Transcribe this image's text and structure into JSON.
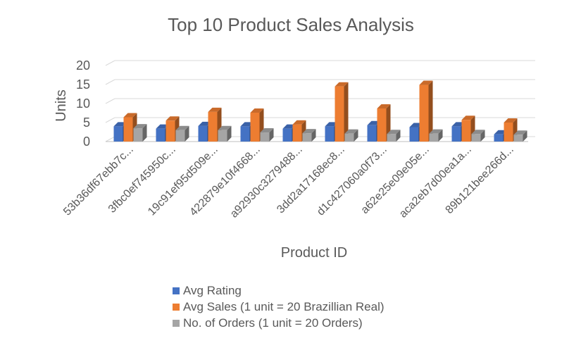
{
  "chart_data": {
    "type": "bar",
    "title": "Top 10 Product Sales Analysis",
    "xlabel": "Product ID",
    "ylabel": "Units",
    "ylim": [
      0,
      20
    ],
    "yticks": [
      0,
      5,
      10,
      15,
      20
    ],
    "grid": true,
    "legend_position": "bottom",
    "categories": [
      "53b36df67ebb7c...",
      "3fbc0ef745950c...",
      "19c91ef95d509e...",
      "422879e10f4668...",
      "a92930c3279488...",
      "3dd2a17168ec8...",
      "d1c427060a0f73...",
      "a62e25e09e05e...",
      "aca2eb7d00ea1a...",
      "89b121bee266d..."
    ],
    "series": [
      {
        "name": "Avg Rating",
        "color": "#4472C4",
        "values": [
          4.0,
          3.4,
          4.1,
          4.0,
          3.4,
          4.0,
          4.3,
          3.8,
          4.0,
          1.9
        ]
      },
      {
        "name": "Avg Sales (1 unit = 20 Brazillian Real)",
        "color": "#ED7D31",
        "values": [
          6.4,
          5.5,
          7.8,
          7.6,
          4.5,
          14.5,
          8.7,
          14.9,
          5.7,
          5.0
        ]
      },
      {
        "name": "No. of Orders (1 unit = 20 Orders)",
        "color": "#A5A5A5",
        "values": [
          3.5,
          3.0,
          3.0,
          2.4,
          2.2,
          2.1,
          2.0,
          2.1,
          2.0,
          1.8
        ]
      }
    ]
  }
}
